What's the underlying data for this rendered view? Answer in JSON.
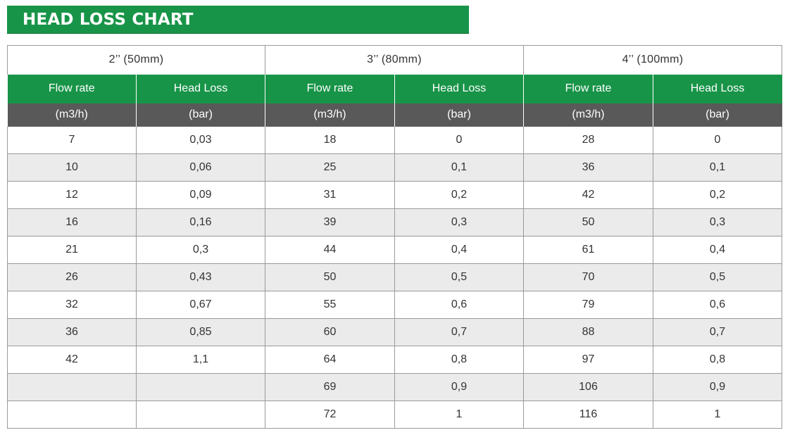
{
  "title": "HEAD LOSS CHART",
  "chart_data": {
    "type": "table",
    "title": "HEAD LOSS CHART",
    "column_labels": {
      "flow": "Flow rate",
      "loss": "Head Loss"
    },
    "unit_labels": {
      "flow": "(m3/h)",
      "loss": "(bar)"
    },
    "groups": [
      {
        "size": "2’’ (50mm)",
        "rows": [
          [
            "7",
            "0,03"
          ],
          [
            "10",
            "0,06"
          ],
          [
            "12",
            "0,09"
          ],
          [
            "16",
            "0,16"
          ],
          [
            "21",
            "0,3"
          ],
          [
            "26",
            "0,43"
          ],
          [
            "32",
            "0,67"
          ],
          [
            "36",
            "0,85"
          ],
          [
            "42",
            "1,1"
          ],
          [
            "",
            ""
          ],
          [
            "",
            ""
          ]
        ]
      },
      {
        "size": "3’’ (80mm)",
        "rows": [
          [
            "18",
            "0"
          ],
          [
            "25",
            "0,1"
          ],
          [
            "31",
            "0,2"
          ],
          [
            "39",
            "0,3"
          ],
          [
            "44",
            "0,4"
          ],
          [
            "50",
            "0,5"
          ],
          [
            "55",
            "0,6"
          ],
          [
            "60",
            "0,7"
          ],
          [
            "64",
            "0,8"
          ],
          [
            "69",
            "0,9"
          ],
          [
            "72",
            "1"
          ]
        ]
      },
      {
        "size": "4’’ (100mm)",
        "rows": [
          [
            "28",
            "0"
          ],
          [
            "36",
            "0,1"
          ],
          [
            "42",
            "0,2"
          ],
          [
            "50",
            "0,3"
          ],
          [
            "61",
            "0,4"
          ],
          [
            "70",
            "0,5"
          ],
          [
            "79",
            "0,6"
          ],
          [
            "88",
            "0,7"
          ],
          [
            "97",
            "0,8"
          ],
          [
            "106",
            "0,9"
          ],
          [
            "116",
            "1"
          ]
        ]
      }
    ]
  },
  "colors": {
    "header_green": "#189448",
    "unit_gray": "#595959",
    "stripe": "#ebebeb",
    "border": "#9a9a9a"
  }
}
